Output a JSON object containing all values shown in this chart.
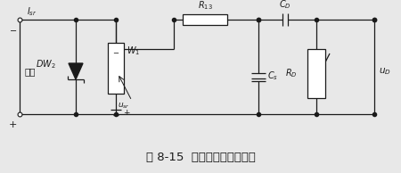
{
  "title": "图 8-15  输入电路和微分电路",
  "title_fontsize": 9.5,
  "bg_color": "#e8e8e8",
  "line_color": "#1a1a1a",
  "line_width": 0.9,
  "fig_width": 4.5,
  "fig_height": 1.94,
  "dpi": 100,
  "labels": {
    "Isr": "$I_{sr}$",
    "DW2": "$DW_2$",
    "W1": "$W_1$",
    "utr": "$u_{sr}$",
    "R13": "$R_{13}$",
    "Cs": "$C_s$",
    "CD": "$C_D$",
    "RD": "$R_D$",
    "uD": "$u_D$",
    "shuru": "输入"
  }
}
